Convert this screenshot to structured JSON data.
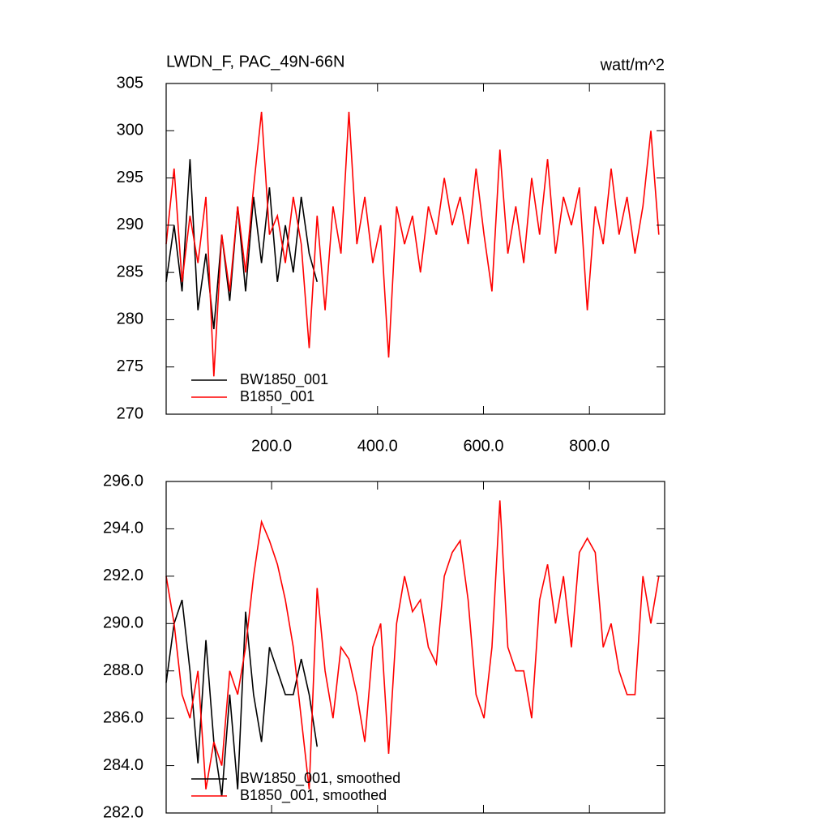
{
  "chart_data": [
    {
      "type": "line",
      "title": "LWDN_F, PAC_49N-66N",
      "units_label": "watt/m^2",
      "x": [
        1,
        16,
        31,
        46,
        61,
        76,
        91,
        106,
        121,
        136,
        151,
        166,
        181,
        196,
        211,
        226,
        241,
        256,
        271,
        286,
        301,
        316,
        331,
        346,
        361,
        376,
        391,
        406,
        421,
        436,
        451,
        466,
        481,
        496,
        511,
        526,
        541,
        556,
        571,
        586,
        601,
        616,
        631,
        646,
        661,
        676,
        691,
        706,
        721,
        736,
        751,
        766,
        781,
        796,
        811,
        826,
        841,
        856,
        871,
        886,
        901,
        916,
        931
      ],
      "series": [
        {
          "name": "BW1850_001",
          "color": "#000000",
          "values": [
            284,
            290,
            283,
            297,
            281,
            287,
            279,
            289,
            282,
            292,
            283,
            293,
            286,
            294,
            284,
            290,
            285,
            293,
            287,
            284,
            null,
            null,
            null,
            null,
            null,
            null,
            null,
            null,
            null,
            null,
            null,
            null,
            null,
            null,
            null,
            null,
            null,
            null,
            null,
            null,
            null,
            null,
            null,
            null,
            null,
            null,
            null,
            null,
            null,
            null,
            null,
            null,
            null,
            null,
            null,
            null,
            null,
            null,
            null,
            null,
            null,
            null,
            null
          ]
        },
        {
          "name": "B1850_001",
          "color": "#ff0000",
          "values": [
            288,
            296,
            284,
            291,
            286,
            293,
            274,
            289,
            283,
            292,
            285,
            294,
            302,
            289,
            291,
            286,
            293,
            288,
            277,
            291,
            281,
            292,
            287,
            302,
            288,
            293,
            286,
            290,
            276,
            292,
            288,
            291,
            285,
            292,
            289,
            295,
            290,
            293,
            288,
            296,
            289,
            283,
            298,
            287,
            292,
            286,
            295,
            289,
            297,
            287,
            293,
            290,
            294,
            281,
            292,
            288,
            296,
            289,
            293,
            287,
            292,
            300,
            289
          ]
        }
      ],
      "xlim": [
        1,
        942
      ],
      "ylim": [
        270,
        305
      ],
      "xticks": [
        {
          "value": 200,
          "label": "200.0"
        },
        {
          "value": 400,
          "label": "400.0"
        },
        {
          "value": 600,
          "label": "600.0"
        },
        {
          "value": 800,
          "label": "800.0"
        }
      ],
      "yticks": [
        270,
        275,
        280,
        285,
        290,
        295,
        300,
        305
      ]
    },
    {
      "type": "line",
      "x": [
        1,
        16,
        31,
        46,
        61,
        76,
        91,
        106,
        121,
        136,
        151,
        166,
        181,
        196,
        211,
        226,
        241,
        256,
        271,
        286,
        301,
        316,
        331,
        346,
        361,
        376,
        391,
        406,
        421,
        436,
        451,
        466,
        481,
        496,
        511,
        526,
        541,
        556,
        571,
        586,
        601,
        616,
        631,
        646,
        661,
        676,
        691,
        706,
        721,
        736,
        751,
        766,
        781,
        796,
        811,
        826,
        841,
        856,
        871,
        886,
        901,
        916,
        931
      ],
      "series": [
        {
          "name": "BW1850_001, smoothed",
          "color": "#000000",
          "values": [
            287.5,
            290,
            291,
            288,
            284.1,
            289.3,
            285,
            282.7,
            287,
            283,
            290.5,
            287,
            285,
            289,
            288,
            287,
            287,
            288.5,
            287,
            284.8,
            null,
            null,
            null,
            null,
            null,
            null,
            null,
            null,
            null,
            null,
            null,
            null,
            null,
            null,
            null,
            null,
            null,
            null,
            null,
            null,
            null,
            null,
            null,
            null,
            null,
            null,
            null,
            null,
            null,
            null,
            null,
            null,
            null,
            null,
            null,
            null,
            null,
            null,
            null,
            null,
            null,
            null,
            null
          ]
        },
        {
          "name": "B1850_001, smoothed",
          "color": "#ff0000",
          "values": [
            292,
            290,
            287,
            286,
            288,
            283,
            285,
            284,
            288,
            287,
            289,
            292,
            294.3,
            293.5,
            292.5,
            291,
            289,
            286,
            283,
            291.5,
            288,
            286,
            289,
            288.5,
            287,
            285,
            289,
            290,
            284.5,
            290,
            292,
            290.5,
            291,
            289,
            288.3,
            292,
            293,
            293.5,
            291,
            287,
            286,
            289,
            295.2,
            289,
            288,
            288,
            286,
            291,
            292.5,
            290,
            292,
            289,
            293,
            293.6,
            293,
            289,
            290,
            288,
            287,
            287,
            292,
            290,
            292
          ]
        }
      ],
      "xlim": [
        1,
        942
      ],
      "ylim": [
        282,
        296
      ],
      "xticks": [
        200,
        400,
        600,
        800
      ],
      "yticks": [
        {
          "value": 282,
          "label": "282.0"
        },
        {
          "value": 284,
          "label": "284.0"
        },
        {
          "value": 286,
          "label": "286.0"
        },
        {
          "value": 288,
          "label": "288.0"
        },
        {
          "value": 290,
          "label": "290.0"
        },
        {
          "value": 292,
          "label": "292.0"
        },
        {
          "value": 294,
          "label": "294.0"
        },
        {
          "value": 296,
          "label": "296.0"
        }
      ]
    }
  ]
}
